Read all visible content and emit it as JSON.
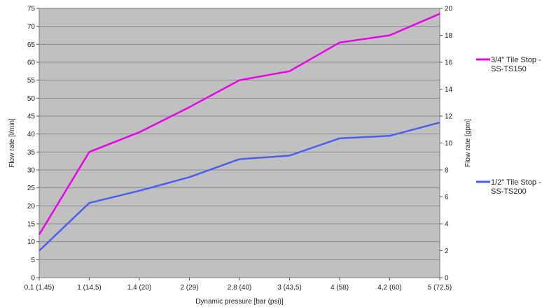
{
  "chart_data": {
    "type": "line",
    "categories": [
      "0,1 (1,45)",
      "1 (14,5)",
      "1,4 (20)",
      "2 (29)",
      "2,8 (40)",
      "3 (43,5)",
      "4 (58)",
      "4,2 (60)",
      "5 (72,5)"
    ],
    "series": [
      {
        "name": "3/4\" Tile Stop -\nSS-TS150",
        "values": [
          12,
          35,
          40.5,
          47.5,
          55,
          57.5,
          65.5,
          67.5,
          73.5
        ],
        "color": "#e800e8"
      },
      {
        "name": "1/2\" Tile Stop -\nSS-TS200",
        "values": [
          7.5,
          20.8,
          24.2,
          28,
          33,
          34,
          38.8,
          39.5,
          43.2
        ],
        "color": "#4b5ef0"
      }
    ],
    "xlabel": "Dynamic pressure [bar (psi)]",
    "ylabel": "Flow rate [l/min]",
    "y2label": "Flow rate [gpm]",
    "ylim": [
      0,
      75
    ],
    "yticks": [
      "0",
      "5",
      "10",
      "15",
      "20",
      "25",
      "30",
      "35",
      "40",
      "45",
      "50",
      "55",
      "60",
      "65",
      "70",
      "75"
    ],
    "y2lim": [
      0,
      20
    ],
    "y2ticks": [
      "0",
      "2",
      "4",
      "6",
      "8",
      "10",
      "12",
      "14",
      "16",
      "18",
      "20"
    ],
    "grid": true,
    "legend": "right",
    "plot_background": "#c0c0c0"
  }
}
